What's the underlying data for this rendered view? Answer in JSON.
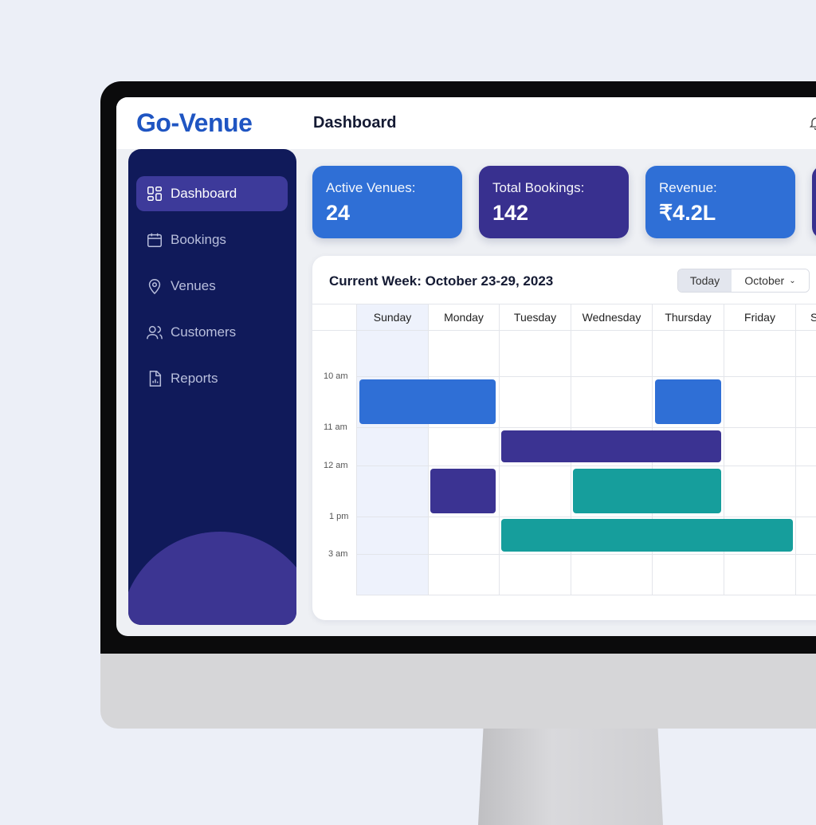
{
  "brand": {
    "name": "Go-Venue"
  },
  "header": {
    "title": "Dashboard",
    "icon": "bell-icon"
  },
  "sidebar": {
    "items": [
      {
        "label": "Dashboard",
        "icon": "dashboard-grid-icon",
        "active": true
      },
      {
        "label": "Bookings",
        "icon": "calendar-icon"
      },
      {
        "label": "Venues",
        "icon": "map-pin-icon"
      },
      {
        "label": "Customers",
        "icon": "users-icon"
      },
      {
        "label": "Reports",
        "icon": "report-file-icon"
      }
    ]
  },
  "stats": [
    {
      "label": "Active Venues:",
      "value": "24",
      "color": "#2f6fd6"
    },
    {
      "label": "Total Bookings:",
      "value": "142",
      "color": "#38308f"
    },
    {
      "label": "Revenue:",
      "value": "₹4.2L",
      "color": "#2f6fd6"
    }
  ],
  "calendar": {
    "title": "Current Week: October 23-29, 2023",
    "today_label": "Today",
    "month_select": "October",
    "days": [
      "Sunday",
      "Monday",
      "Tuesday",
      "Wednesday",
      "Thursday",
      "Friday",
      "S"
    ],
    "times": [
      "10 am",
      "11 am",
      "12 am",
      "1 pm",
      "3 am"
    ],
    "event_colors": {
      "blue": "#2f6fd6",
      "purple": "#3b3392",
      "teal": "#169e9c"
    }
  }
}
